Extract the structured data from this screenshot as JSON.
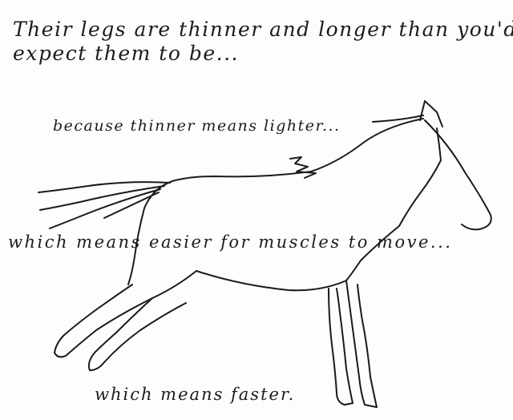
{
  "caption": {
    "line1": "Their legs are thinner and longer than you'd",
    "line2": "expect them to be...",
    "line3": "because thinner means lighter...",
    "line4": "which means easier for muscles to move...",
    "line5": "which means faster."
  },
  "colors": {
    "ink": "#1a1a1a",
    "paper": "#fdfdfc"
  }
}
